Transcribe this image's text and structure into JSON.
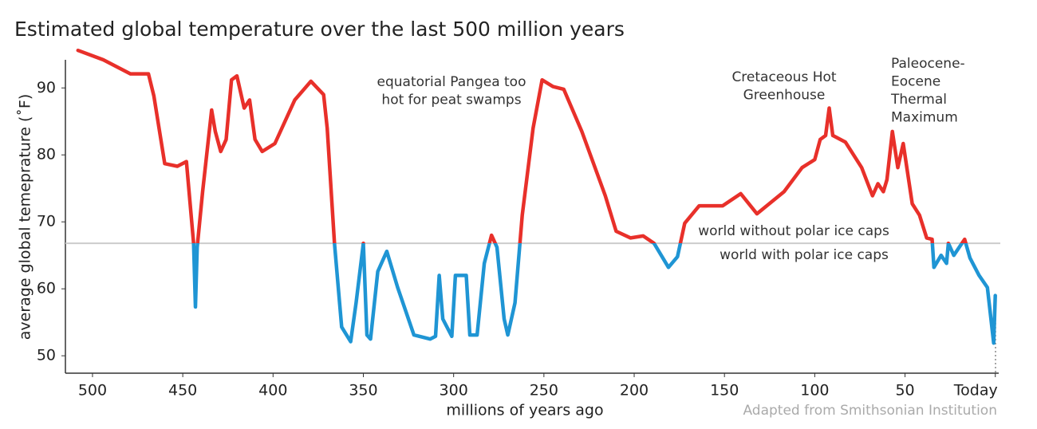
{
  "chart_data": {
    "type": "line",
    "title": "Estimated global temperature over the last 500 million years",
    "x_label": "millions of years ago",
    "y_label": "average global temeprature (˚F)",
    "source": "Adapted from Smithsonian Institution",
    "xlim": [
      515,
      -1
    ],
    "xticks": [
      500,
      450,
      400,
      350,
      300,
      250,
      200,
      150,
      100,
      50,
      {
        "value": 0,
        "label": "Today"
      }
    ],
    "ylim": [
      47.4,
      94.2
    ],
    "yticks": [
      50,
      60,
      70,
      80,
      90
    ],
    "reference_line": 66.8,
    "color_above": "#e8302a",
    "color_below": "#1f95d4",
    "annotations": [
      {
        "lines": [
          "equatorial Pangea too",
          "hot for peat swamps"
        ]
      },
      {
        "lines": [
          "Cretaceous Hot",
          "Greenhouse"
        ]
      },
      {
        "lines": [
          "Paleocene-",
          "Eocene",
          "Thermal",
          "Maximum"
        ]
      },
      {
        "lines": [
          "world without polar ice caps"
        ]
      },
      {
        "lines": [
          "world with polar ice caps"
        ]
      }
    ],
    "x": [
      508,
      494,
      479,
      469,
      466,
      460,
      453,
      448,
      444,
      443,
      442,
      439,
      434,
      432,
      429,
      426,
      423,
      420,
      416,
      413,
      410,
      406,
      399,
      388,
      379,
      372,
      370,
      366,
      362,
      357,
      354,
      350,
      348,
      346,
      342,
      337,
      331,
      322,
      313,
      310,
      308,
      306,
      301,
      299,
      293,
      291,
      287,
      283,
      279,
      276,
      272,
      270,
      266,
      262,
      256,
      251,
      245,
      239,
      229,
      216,
      210,
      202,
      195,
      189,
      181,
      176,
      172,
      164,
      151,
      141,
      132,
      117,
      107,
      100,
      97,
      94,
      92,
      90,
      83,
      74,
      68,
      65,
      62,
      60,
      57,
      54,
      51,
      46,
      42,
      38,
      35,
      34,
      30,
      27,
      26,
      23,
      20,
      17,
      14,
      9,
      4.4,
      0.9,
      0
    ],
    "values": [
      95.6,
      94.2,
      92.1,
      92.1,
      88.8,
      78.7,
      78.3,
      79.0,
      66.8,
      57.3,
      66.2,
      74.5,
      86.7,
      83.5,
      80.5,
      82.3,
      91.2,
      91.8,
      87.0,
      88.2,
      82.3,
      80.5,
      81.7,
      88.2,
      91.0,
      89.0,
      84.0,
      66.8,
      54.3,
      52.1,
      57.9,
      66.8,
      53.1,
      52.5,
      62.6,
      65.6,
      60.2,
      53.1,
      52.5,
      52.9,
      62.0,
      55.5,
      52.9,
      62.0,
      62.0,
      53.1,
      53.1,
      63.8,
      68.0,
      66.2,
      55.5,
      53.1,
      57.9,
      71.0,
      84.0,
      91.2,
      90.2,
      89.8,
      83.5,
      73.9,
      68.6,
      67.6,
      67.9,
      66.8,
      63.2,
      64.8,
      69.8,
      72.4,
      72.4,
      74.2,
      71.2,
      74.5,
      78.1,
      79.3,
      82.3,
      82.9,
      87.0,
      82.9,
      81.9,
      78.1,
      73.9,
      75.7,
      74.5,
      76.3,
      83.5,
      78.1,
      81.7,
      72.7,
      71.0,
      67.6,
      67.4,
      63.2,
      65.0,
      63.8,
      66.8,
      65.0,
      66.2,
      67.4,
      64.6,
      62.0,
      60.2,
      51.9,
      59.0
    ]
  }
}
